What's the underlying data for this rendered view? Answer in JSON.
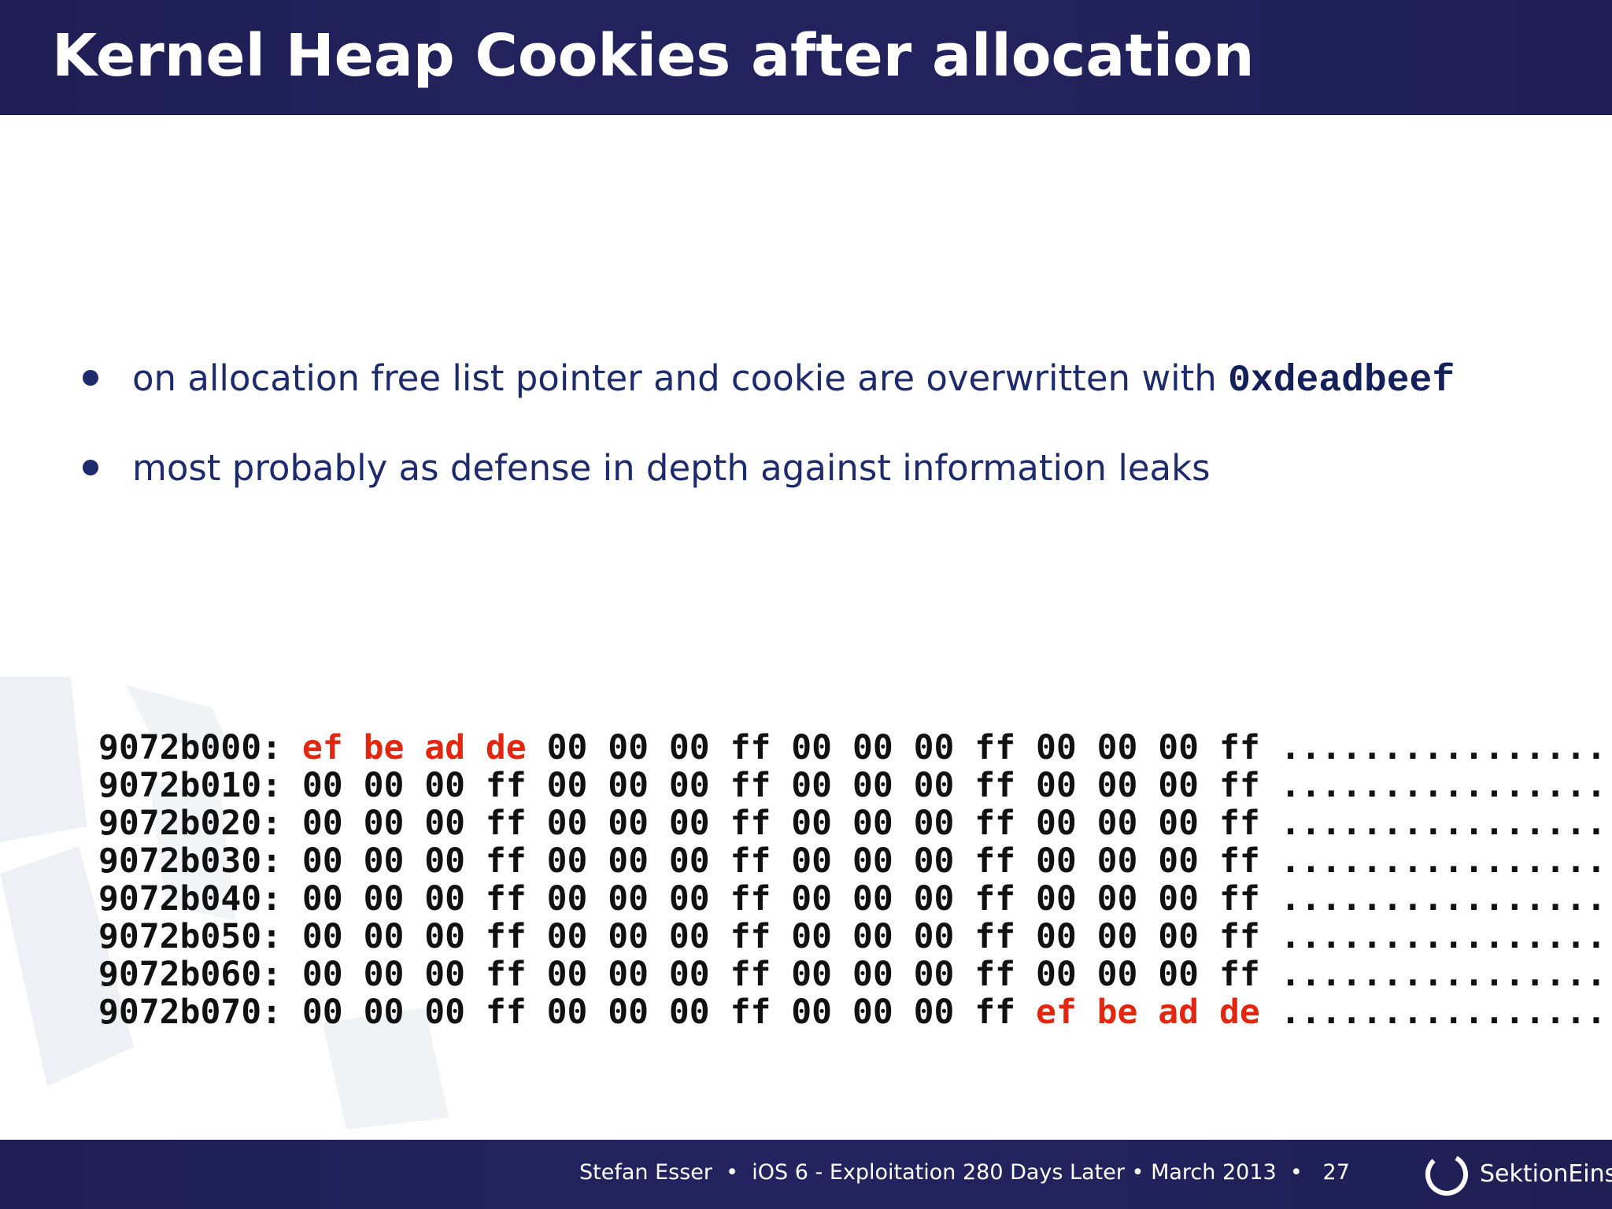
{
  "slide": {
    "title": "Kernel Heap Cookies after allocation"
  },
  "bullets": [
    {
      "text": "on allocation free list pointer and cookie are overwritten with ",
      "code": "0xdeadbeef"
    },
    {
      "text": "most probably as defense in depth against information leaks"
    }
  ],
  "hexdump": {
    "rows": [
      {
        "address": "9072b000:",
        "bytes": [
          "ef",
          "be",
          "ad",
          "de",
          "00",
          "00",
          "00",
          "ff",
          "00",
          "00",
          "00",
          "ff",
          "00",
          "00",
          "00",
          "ff"
        ],
        "ascii": "................"
      },
      {
        "address": "9072b010:",
        "bytes": [
          "00",
          "00",
          "00",
          "ff",
          "00",
          "00",
          "00",
          "ff",
          "00",
          "00",
          "00",
          "ff",
          "00",
          "00",
          "00",
          "ff"
        ],
        "ascii": "................"
      },
      {
        "address": "9072b020:",
        "bytes": [
          "00",
          "00",
          "00",
          "ff",
          "00",
          "00",
          "00",
          "ff",
          "00",
          "00",
          "00",
          "ff",
          "00",
          "00",
          "00",
          "ff"
        ],
        "ascii": "................"
      },
      {
        "address": "9072b030:",
        "bytes": [
          "00",
          "00",
          "00",
          "ff",
          "00",
          "00",
          "00",
          "ff",
          "00",
          "00",
          "00",
          "ff",
          "00",
          "00",
          "00",
          "ff"
        ],
        "ascii": "................"
      },
      {
        "address": "9072b040:",
        "bytes": [
          "00",
          "00",
          "00",
          "ff",
          "00",
          "00",
          "00",
          "ff",
          "00",
          "00",
          "00",
          "ff",
          "00",
          "00",
          "00",
          "ff"
        ],
        "ascii": "................"
      },
      {
        "address": "9072b050:",
        "bytes": [
          "00",
          "00",
          "00",
          "ff",
          "00",
          "00",
          "00",
          "ff",
          "00",
          "00",
          "00",
          "ff",
          "00",
          "00",
          "00",
          "ff"
        ],
        "ascii": "................"
      },
      {
        "address": "9072b060:",
        "bytes": [
          "00",
          "00",
          "00",
          "ff",
          "00",
          "00",
          "00",
          "ff",
          "00",
          "00",
          "00",
          "ff",
          "00",
          "00",
          "00",
          "ff"
        ],
        "ascii": "................"
      },
      {
        "address": "9072b070:",
        "bytes": [
          "00",
          "00",
          "00",
          "ff",
          "00",
          "00",
          "00",
          "ff",
          "00",
          "00",
          "00",
          "ff",
          "ef",
          "be",
          "ad",
          "de"
        ],
        "ascii": "................"
      }
    ],
    "highlighted_bytes": [
      "ef",
      "be",
      "ad",
      "de"
    ]
  },
  "footer": {
    "author": "Stefan Esser",
    "talk": "iOS 6 - Exploitation 280 Days Later",
    "date": "March 2013",
    "page_number": "27",
    "separator": "•",
    "brand": "SektionEins"
  },
  "colors": {
    "header_background": "#1f1f55",
    "footer_background": "#1f1f55",
    "title_text": "#ffffff",
    "bullet_text": "#1d2a6b",
    "hex_text": "#111111",
    "hex_highlight": "#e3260f",
    "slide_background": "#ffffff"
  },
  "icons": {
    "bullet": "filled-circle",
    "logo": "sektioneins-ring-logo"
  }
}
